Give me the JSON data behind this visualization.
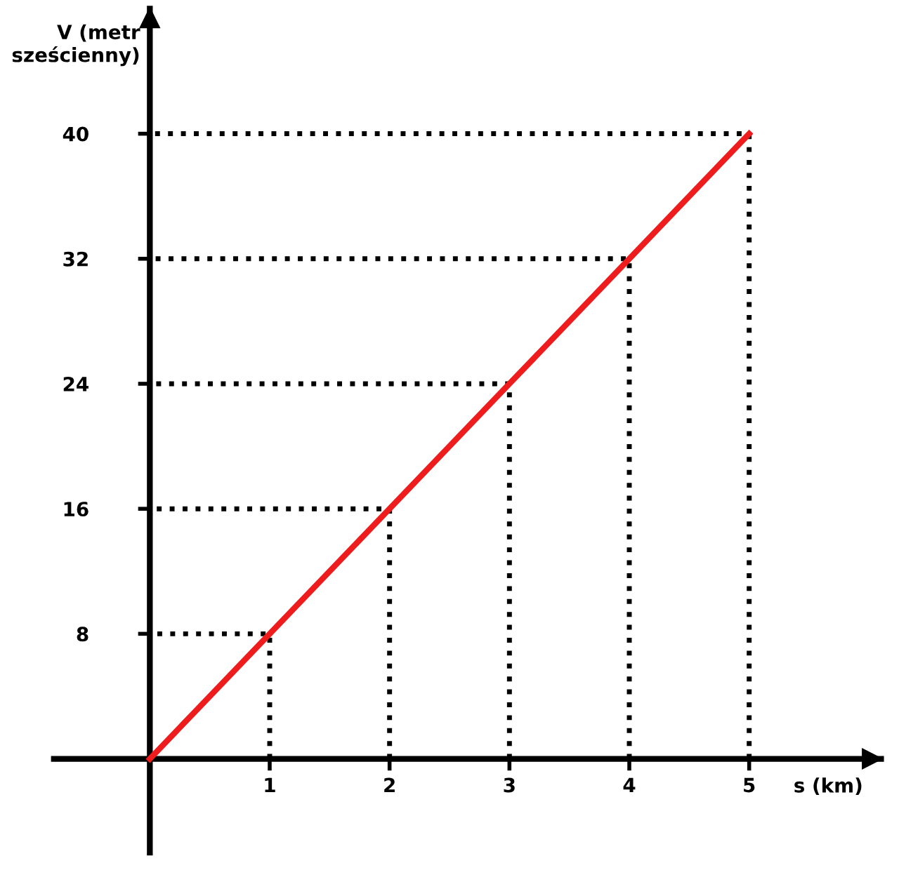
{
  "chart_data": {
    "type": "line",
    "xlabel": "s (km)",
    "ylabel": "V (metr\nsześcienny)",
    "x": [
      0,
      1,
      2,
      3,
      4,
      5
    ],
    "series": [
      {
        "color": "#000000",
        "line_style": "dotted",
        "x": [
          1,
          1,
          0
        ],
        "values": [
          0,
          8,
          8
        ]
      },
      {
        "color": "#000000",
        "line_style": "dotted",
        "x": [
          2,
          2,
          0
        ],
        "values": [
          0,
          16,
          16
        ]
      },
      {
        "color": "#000000",
        "line_style": "dotted",
        "x": [
          3,
          3,
          0
        ],
        "values": [
          0,
          24,
          24
        ]
      },
      {
        "color": "#000000",
        "line_style": "dotted",
        "x": [
          4,
          4,
          0
        ],
        "values": [
          0,
          32,
          32
        ]
      },
      {
        "color": "#000000",
        "line_style": "dotted",
        "x": [
          5,
          5,
          0
        ],
        "values": [
          0,
          40,
          40
        ]
      },
      {
        "color": "#ee1c1c",
        "values": [
          0,
          8,
          16,
          24,
          32,
          40
        ]
      }
    ],
    "xlim": [
      -0.8,
      6.1
    ],
    "ylim": [
      -6,
      48
    ],
    "xticks": [
      1,
      2,
      3,
      4,
      5
    ],
    "yticks": [
      8,
      16,
      24,
      32,
      40
    ],
    "marker": "none",
    "line_style": "solid"
  }
}
